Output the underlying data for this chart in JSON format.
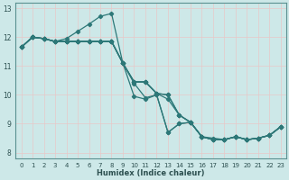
{
  "xlabel": "Humidex (Indice chaleur)",
  "bg_color": "#cde8e8",
  "line_color": "#2d7878",
  "marker": "D",
  "marker_size": 2.2,
  "line_width": 0.9,
  "xlim": [
    -0.5,
    23.5
  ],
  "ylim": [
    7.8,
    13.2
  ],
  "yticks": [
    8,
    9,
    10,
    11,
    12,
    13
  ],
  "xticks": [
    0,
    1,
    2,
    3,
    4,
    5,
    6,
    7,
    8,
    9,
    10,
    11,
    12,
    13,
    14,
    15,
    16,
    17,
    18,
    19,
    20,
    21,
    22,
    23
  ],
  "grid_color_major": "#e8c8c8",
  "grid_color_minor": "#d8e8e8",
  "lines": [
    [
      [
        0,
        11.65
      ],
      [
        1,
        12.0
      ],
      [
        2,
        11.95
      ],
      [
        3,
        11.85
      ],
      [
        4,
        11.95
      ],
      [
        5,
        12.2
      ],
      [
        6,
        12.45
      ],
      [
        7,
        12.72
      ],
      [
        8,
        12.82
      ],
      [
        9,
        11.1
      ],
      [
        10,
        10.4
      ],
      [
        11,
        9.9
      ],
      [
        12,
        10.0
      ],
      [
        13,
        8.7
      ],
      [
        14,
        9.0
      ],
      [
        15,
        9.05
      ],
      [
        16,
        8.55
      ],
      [
        17,
        8.45
      ],
      [
        18,
        8.45
      ],
      [
        19,
        8.55
      ],
      [
        20,
        8.45
      ],
      [
        21,
        8.5
      ],
      [
        22,
        8.6
      ],
      [
        23,
        8.9
      ]
    ],
    [
      [
        0,
        11.65
      ],
      [
        1,
        12.0
      ],
      [
        2,
        11.95
      ],
      [
        3,
        11.85
      ],
      [
        4,
        11.85
      ],
      [
        5,
        11.85
      ],
      [
        6,
        11.85
      ],
      [
        7,
        11.85
      ],
      [
        8,
        11.85
      ],
      [
        9,
        11.1
      ],
      [
        10,
        10.45
      ],
      [
        11,
        10.45
      ],
      [
        12,
        10.05
      ],
      [
        13,
        10.0
      ],
      [
        14,
        9.3
      ],
      [
        15,
        9.05
      ],
      [
        16,
        8.55
      ],
      [
        17,
        8.5
      ],
      [
        18,
        8.45
      ],
      [
        19,
        8.55
      ],
      [
        20,
        8.45
      ],
      [
        21,
        8.5
      ],
      [
        22,
        8.6
      ],
      [
        23,
        8.9
      ]
    ],
    [
      [
        0,
        11.65
      ],
      [
        1,
        12.0
      ],
      [
        2,
        11.95
      ],
      [
        3,
        11.85
      ],
      [
        4,
        11.85
      ],
      [
        5,
        11.85
      ],
      [
        6,
        11.85
      ],
      [
        7,
        11.85
      ],
      [
        8,
        11.85
      ],
      [
        9,
        11.1
      ],
      [
        10,
        10.45
      ],
      [
        11,
        10.45
      ],
      [
        12,
        10.05
      ],
      [
        13,
        9.85
      ],
      [
        14,
        9.3
      ],
      [
        15,
        9.05
      ],
      [
        16,
        8.55
      ],
      [
        17,
        8.45
      ],
      [
        18,
        8.45
      ],
      [
        19,
        8.55
      ],
      [
        20,
        8.45
      ],
      [
        21,
        8.5
      ],
      [
        22,
        8.6
      ],
      [
        23,
        8.9
      ]
    ],
    [
      [
        0,
        11.65
      ],
      [
        1,
        12.0
      ],
      [
        2,
        11.95
      ],
      [
        3,
        11.85
      ],
      [
        4,
        11.85
      ],
      [
        5,
        11.85
      ],
      [
        6,
        11.85
      ],
      [
        7,
        11.85
      ],
      [
        8,
        11.85
      ],
      [
        9,
        11.1
      ],
      [
        10,
        9.95
      ],
      [
        11,
        9.85
      ],
      [
        12,
        10.0
      ],
      [
        13,
        8.7
      ],
      [
        14,
        9.0
      ],
      [
        15,
        9.05
      ],
      [
        16,
        8.55
      ],
      [
        17,
        8.45
      ],
      [
        18,
        8.45
      ],
      [
        19,
        8.55
      ],
      [
        20,
        8.45
      ],
      [
        21,
        8.5
      ],
      [
        22,
        8.6
      ],
      [
        23,
        8.9
      ]
    ],
    [
      [
        0,
        11.65
      ],
      [
        1,
        12.0
      ],
      [
        2,
        11.95
      ],
      [
        3,
        11.85
      ],
      [
        4,
        11.85
      ],
      [
        5,
        11.85
      ],
      [
        6,
        11.85
      ],
      [
        7,
        11.85
      ],
      [
        8,
        11.85
      ],
      [
        9,
        11.1
      ],
      [
        10,
        10.45
      ],
      [
        11,
        10.45
      ],
      [
        12,
        10.05
      ],
      [
        13,
        10.0
      ],
      [
        14,
        9.3
      ],
      [
        15,
        9.05
      ],
      [
        16,
        8.55
      ],
      [
        17,
        8.45
      ],
      [
        18,
        8.45
      ],
      [
        19,
        8.55
      ],
      [
        20,
        8.45
      ],
      [
        21,
        8.5
      ],
      [
        22,
        8.6
      ],
      [
        23,
        8.9
      ]
    ]
  ]
}
